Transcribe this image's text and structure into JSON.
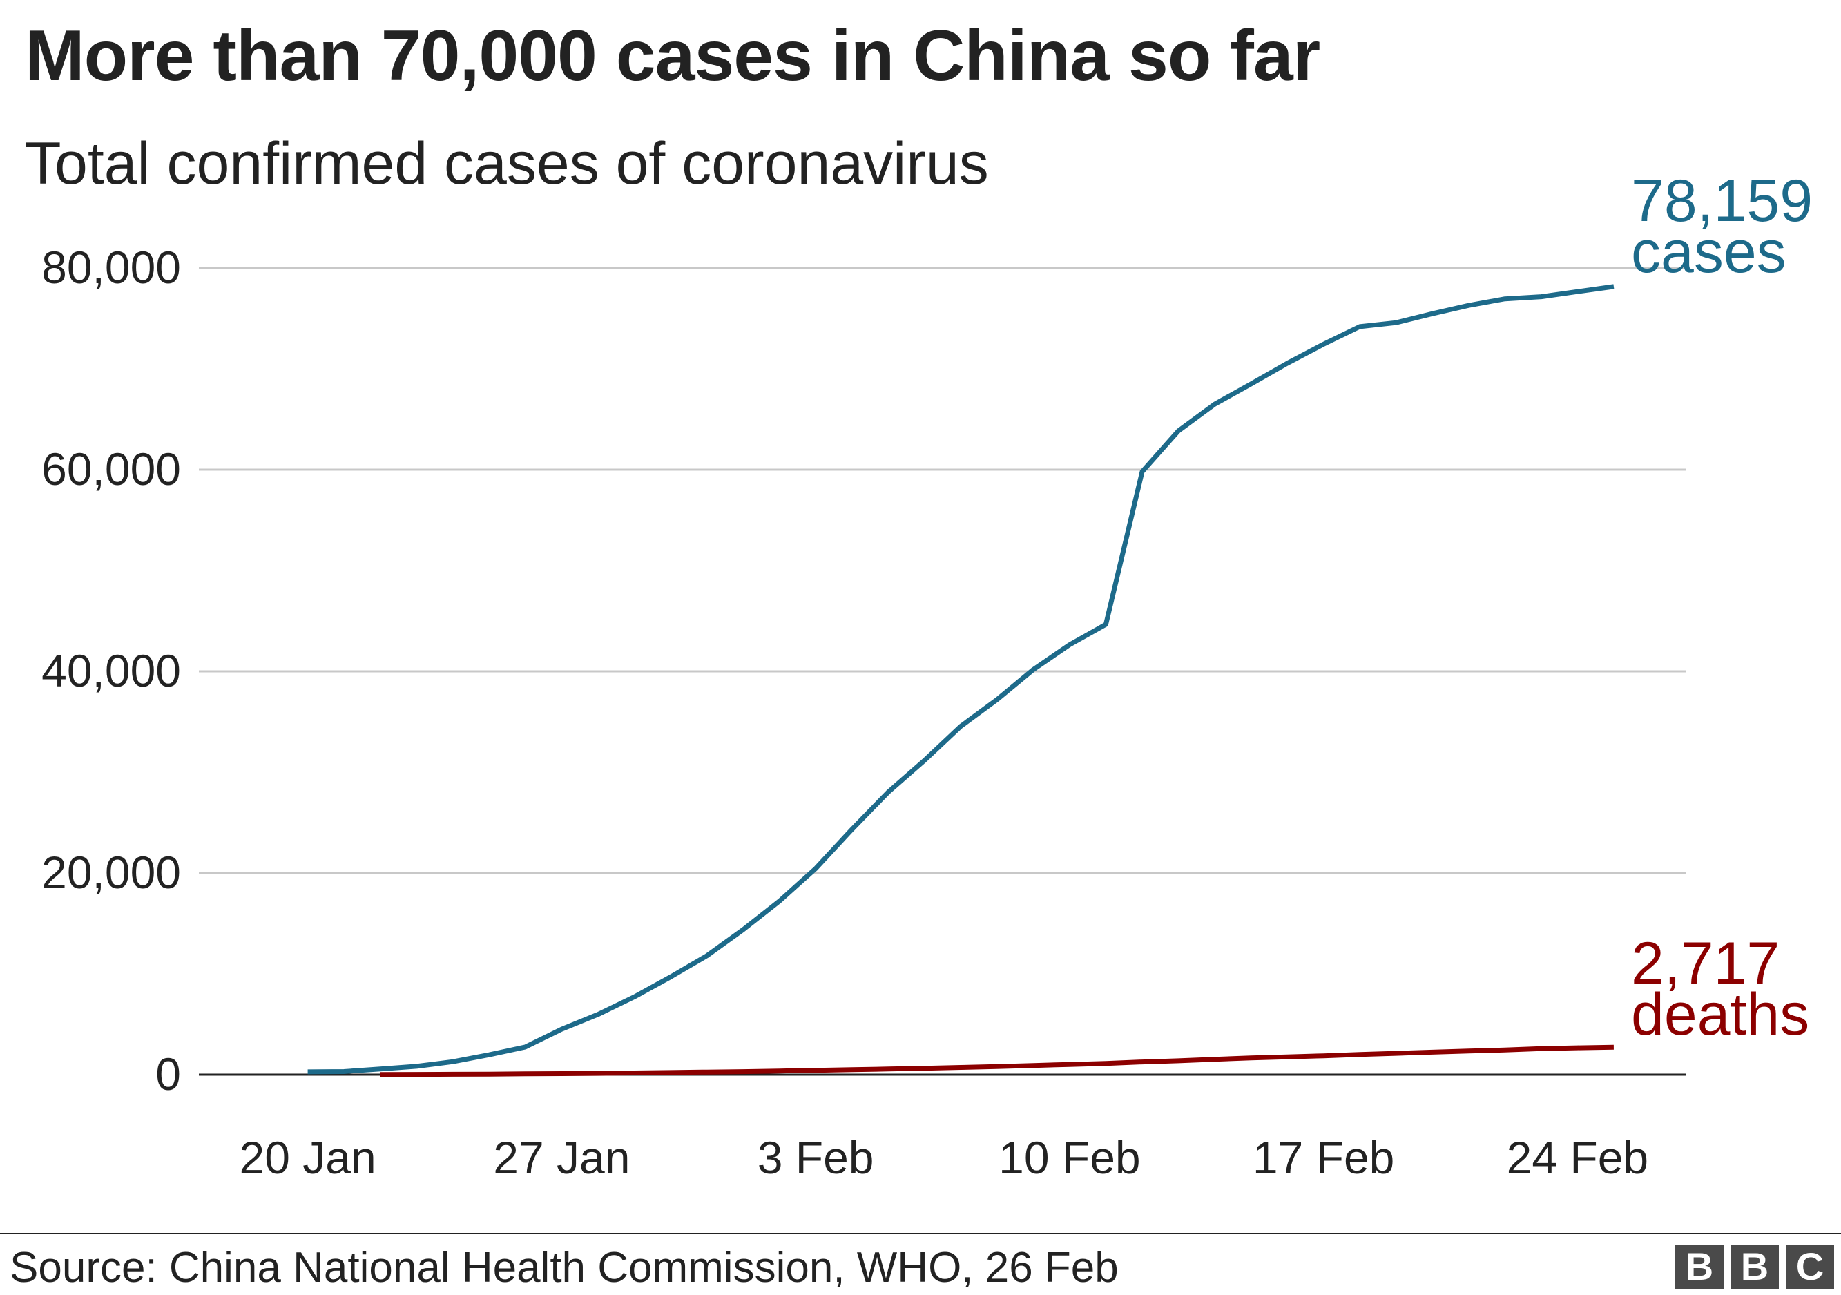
{
  "title": "More than 70,000 cases in China so far",
  "subtitle": "Total confirmed cases of coronavirus",
  "source": "Source: China National Health Commission, WHO, 26 Feb",
  "logo": [
    "B",
    "B",
    "C"
  ],
  "colors": {
    "cases": "#1d6a8a",
    "deaths": "#8c0000",
    "grid": "#c8c8c8",
    "axis": "#222222"
  },
  "chart_data": {
    "type": "line",
    "title": "More than 70,000 cases in China so far",
    "subtitle": "Total confirmed cases of coronavirus",
    "xlabel": "",
    "ylabel": "",
    "x_start_day": 20,
    "x_range_days": [
      17,
      58
    ],
    "ylim": [
      0,
      80000
    ],
    "yticks": [
      {
        "value": 0,
        "label": "0"
      },
      {
        "value": 20000,
        "label": "20,000"
      },
      {
        "value": 40000,
        "label": "40,000"
      },
      {
        "value": 60000,
        "label": "60,000"
      },
      {
        "value": 80000,
        "label": "80,000"
      }
    ],
    "xticks": [
      {
        "day": 20,
        "label": "20 Jan"
      },
      {
        "day": 27,
        "label": "27 Jan"
      },
      {
        "day": 34,
        "label": "3 Feb"
      },
      {
        "day": 41,
        "label": "10 Feb"
      },
      {
        "day": 48,
        "label": "17 Feb"
      },
      {
        "day": 55,
        "label": "24 Feb"
      }
    ],
    "grid": true,
    "series": [
      {
        "name": "cases",
        "end_value_label": "78,159",
        "end_unit_label": "cases",
        "values": [
          282,
          309,
          571,
          830,
          1287,
          1975,
          2744,
          4515,
          5974,
          7711,
          9692,
          11791,
          14380,
          17205,
          20438,
          24324,
          28018,
          31161,
          34546,
          37198,
          40171,
          42638,
          44653,
          59804,
          63851,
          66492,
          68500,
          70548,
          72436,
          74185,
          74576,
          75465,
          76288,
          76936,
          77150,
          77658,
          78159
        ]
      },
      {
        "name": "deaths",
        "end_value_label": "2,717",
        "end_unit_label": "deaths",
        "values": [
          17,
          25,
          41,
          56,
          80,
          106,
          132,
          170,
          213,
          259,
          304,
          361,
          425,
          490,
          563,
          636,
          722,
          811,
          908,
          1016,
          1113,
          1259,
          1380,
          1523,
          1665,
          1770,
          1868,
          2004,
          2118,
          2236,
          2345,
          2442,
          2592,
          2663,
          2717
        ]
      }
    ]
  }
}
